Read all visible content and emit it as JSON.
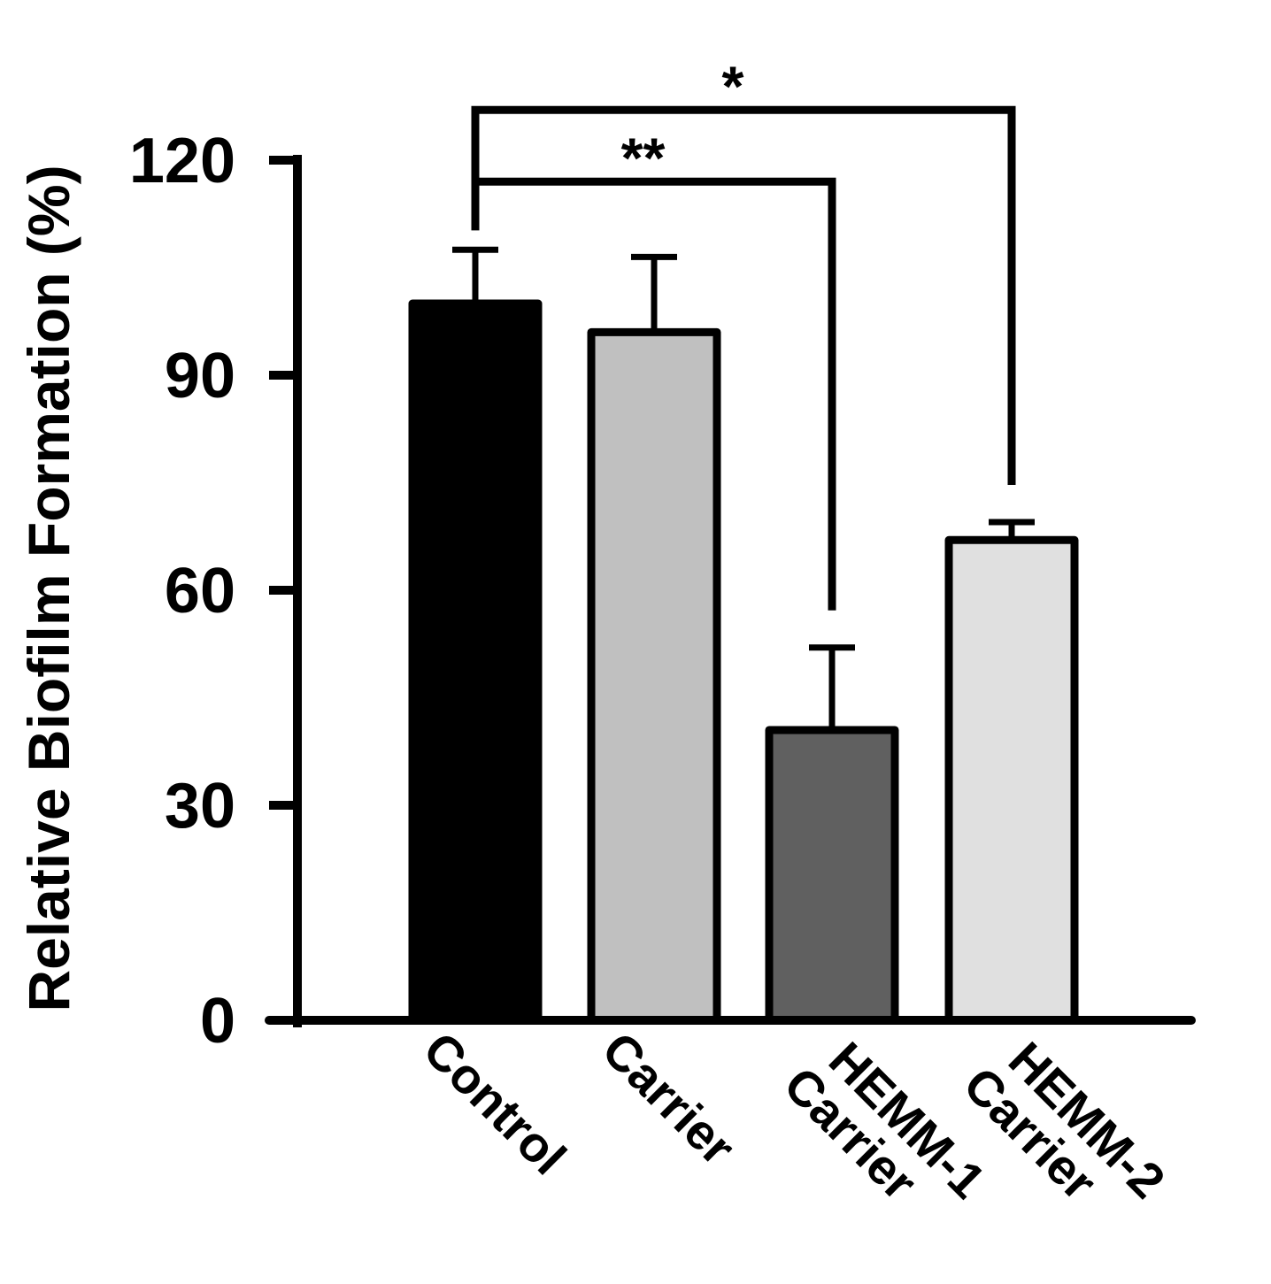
{
  "chart_data": {
    "type": "bar",
    "title": "",
    "xlabel": "",
    "ylabel": "Relative Biofilm Formation (%)",
    "ylim": [
      0,
      120
    ],
    "yticks": [
      0,
      30,
      60,
      90,
      120
    ],
    "grid": false,
    "categories": [
      [
        "Control"
      ],
      [
        "Carrier"
      ],
      [
        "HEMM-1",
        "Carrier"
      ],
      [
        "HEMM-2",
        "Carrier"
      ]
    ],
    "values": [
      100,
      96,
      40.5,
      67
    ],
    "errors": [
      7.5,
      10.5,
      11.5,
      2.5
    ],
    "colors": [
      "#000000",
      "#c0c0c0",
      "#606060",
      "#e0e0e0"
    ],
    "significance": [
      {
        "from": 0,
        "to": 2,
        "label": "**",
        "level": 117
      },
      {
        "from": 0,
        "to": 3,
        "label": "*",
        "level": 127
      }
    ]
  }
}
